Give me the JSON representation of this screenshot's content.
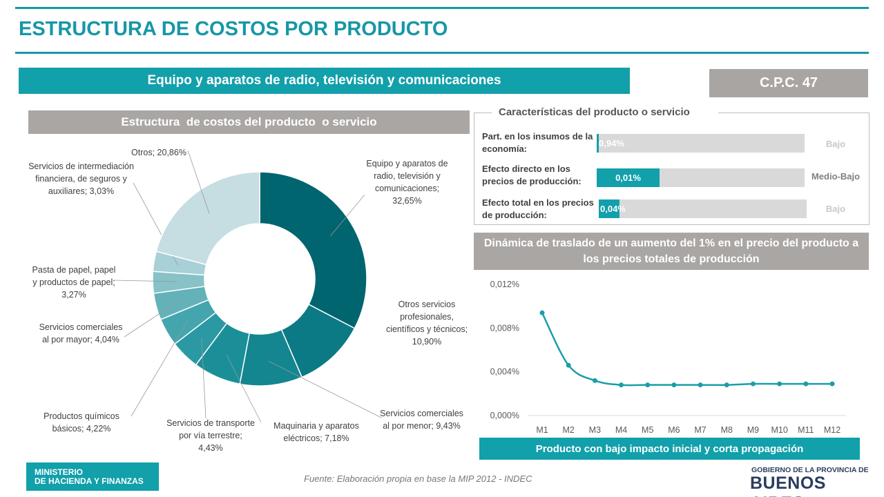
{
  "header": {
    "title": "ESTRUCTURA DE COSTOS POR PRODUCTO",
    "product": "Equipo y aparatos de radio, televisión y comunicaciones",
    "cpc": "C.P.C. 47"
  },
  "chart_data": [
    {
      "type": "pie",
      "title": "Estructura  de costos del producto  o servicio",
      "values": [
        32.65,
        10.9,
        9.43,
        7.18,
        4.43,
        4.22,
        4.04,
        3.27,
        3.03,
        20.86
      ],
      "value_labels": [
        "Equipo y aparatos de radio, televisión y comunicaciones; 32,65%",
        "Otros servicios profesionales, científicos y técnicos; 10,90%",
        "Servicios comerciales al por menor; 9,43%",
        "Maquinaria y aparatos eléctricos; 7,18%",
        "Servicios de transporte por vía terrestre; 4,43%",
        "Productos químicos básicos; 4,22%",
        "Servicios comerciales al por mayor; 4,04%",
        "Pasta de papel, papel y productos de papel; 3,27%",
        "Servicios de intermediación financiera, de seguros y auxiliares; 3,03%",
        "Otros; 20,86%"
      ],
      "colors": [
        "#00656e",
        "#0c7a85",
        "#13868f",
        "#1b8f98",
        "#2a99a3",
        "#45a5ae",
        "#64b2b9",
        "#86c2c8",
        "#a7d1d6",
        "#c6dde2"
      ]
    },
    {
      "type": "line",
      "title": "Dinámica de traslado de un aumento del 1% en el precio del producto a los precios totales de producción",
      "categories": [
        "M1",
        "M2",
        "M3",
        "M4",
        "M5",
        "M6",
        "M7",
        "M8",
        "M9",
        "M10",
        "M11",
        "M12"
      ],
      "values": [
        0.0094,
        0.0046,
        0.0032,
        0.0028,
        0.0028,
        0.0028,
        0.0028,
        0.0028,
        0.0029,
        0.0029,
        0.0029,
        0.0029
      ],
      "color": "#1a9ea8",
      "ylim": [
        0,
        0.012
      ],
      "yticks": [
        {
          "value": 0,
          "label": "0,000%"
        },
        {
          "value": 0.004,
          "label": "0,004%"
        },
        {
          "value": 0.008,
          "label": "0,008%"
        },
        {
          "value": 0.012,
          "label": "0,012%"
        }
      ],
      "annotation": "Producto con bajo impacto inicial y corta propagación"
    }
  ],
  "characteristics": {
    "title": "Características del producto o servicio",
    "rows": [
      {
        "label": "Part. en los insumos de la economía:",
        "value": "0,94%",
        "level": "Bajo"
      },
      {
        "label": "Efecto directo en los precios de producción:",
        "value": "0,01%",
        "level": "Medio-Bajo"
      },
      {
        "label": "Efecto total en los precios de producción:",
        "value": "0,04%",
        "level": "Bajo"
      }
    ]
  },
  "footer": {
    "ministry": [
      "MINISTERIO",
      "DE HACIENDA Y FINANZAS"
    ],
    "source": "Fuente: Elaboración propia en base la MIP 2012 - INDEC",
    "logo_top": "GOBIERNO DE LA PROVINCIA DE",
    "logo_bottom": "BUENOS AIRES"
  }
}
